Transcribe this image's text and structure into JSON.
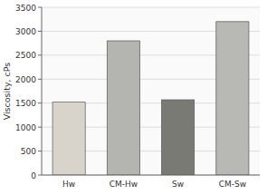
{
  "chart_data": {
    "type": "bar",
    "categories": [
      "Hw",
      "CM-Hw",
      "Sw",
      "CM-Sw"
    ],
    "values": [
      1520,
      2800,
      1570,
      3200
    ],
    "colors": [
      "#d8d4cc",
      "#b4b4b0",
      "#7a7a74",
      "#b8b8b4"
    ],
    "ylabel": "Viscosity, cPs",
    "ylim": [
      0,
      3500
    ],
    "yticks": [
      0,
      500,
      1000,
      1500,
      2000,
      2500,
      3000,
      3500
    ],
    "grid": true
  }
}
